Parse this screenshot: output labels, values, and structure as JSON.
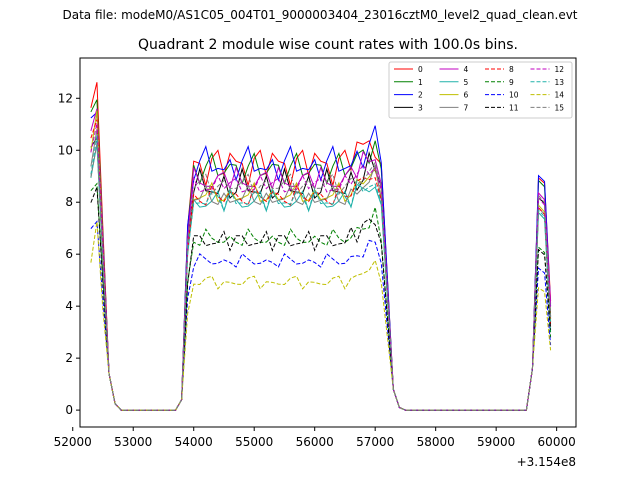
{
  "suptitle": "Data file: modeM0/AS1C05_004T01_9000003404_23016cztM0_level2_quad_clean.evt",
  "chart_data": {
    "type": "line",
    "title": "Quadrant 2 module wise count rates with 100.0s bins.",
    "xlabel": "",
    "ylabel": "",
    "x_offset_label": "+3.154e8",
    "xlim": [
      52120,
      60320
    ],
    "ylim": [
      -0.65,
      13.55
    ],
    "xticks": [
      52000,
      53000,
      54000,
      55000,
      56000,
      57000,
      58000,
      59000,
      60000
    ],
    "xtick_labels": [
      "52000",
      "53000",
      "54000",
      "55000",
      "56000",
      "57000",
      "58000",
      "59000",
      "60000"
    ],
    "yticks": [
      0,
      2,
      4,
      6,
      8,
      10,
      12
    ],
    "ytick_labels": [
      "0",
      "2",
      "4",
      "6",
      "8",
      "10",
      "12"
    ],
    "grid": false,
    "legend": {
      "position": "top-right",
      "columns": 4
    },
    "segments": [
      {
        "start": 52300,
        "n": 4
      },
      {
        "start": 52700,
        "n": 11
      },
      {
        "start": 53800,
        "n": 34
      },
      {
        "start": 57300,
        "n": 23
      },
      {
        "start": 59600,
        "n": 4
      }
    ],
    "series": [
      {
        "name": "0",
        "color": "#ff0000",
        "dashed": false,
        "peak": 12.5,
        "base": 9.4,
        "amp": 0.55,
        "phase": 0.3,
        "tail": 4.2
      },
      {
        "name": "1",
        "color": "#008000",
        "dashed": false,
        "peak": 12.1,
        "base": 9.3,
        "amp": 0.45,
        "phase": 1.1,
        "tail": 3.5
      },
      {
        "name": "2",
        "color": "#0000ff",
        "dashed": false,
        "peak": 11.8,
        "base": 9.5,
        "amp": 0.5,
        "phase": 2.0,
        "tail": 4.0
      },
      {
        "name": "3",
        "color": "#000000",
        "dashed": false,
        "peak": 10.8,
        "base": 8.6,
        "amp": 0.45,
        "phase": 2.7,
        "tail": 3.6
      },
      {
        "name": "4",
        "color": "#c000c0",
        "dashed": false,
        "peak": 11.7,
        "base": 8.8,
        "amp": 0.35,
        "phase": 3.5,
        "tail": 4.1
      },
      {
        "name": "5",
        "color": "#20b2aa",
        "dashed": false,
        "peak": 10.1,
        "base": 8.0,
        "amp": 0.3,
        "phase": 4.2,
        "tail": 3.0
      },
      {
        "name": "6",
        "color": "#bfbf00",
        "dashed": false,
        "peak": 11.2,
        "base": 8.3,
        "amp": 0.3,
        "phase": 5.0,
        "tail": 3.4
      },
      {
        "name": "7",
        "color": "#7f7f7f",
        "dashed": false,
        "peak": 10.5,
        "base": 8.2,
        "amp": 0.3,
        "phase": 5.8,
        "tail": 3.2
      },
      {
        "name": "8",
        "color": "#ff0000",
        "dashed": true,
        "peak": 11.2,
        "base": 8.2,
        "amp": 0.3,
        "phase": 0.7,
        "tail": 3.3
      },
      {
        "name": "9",
        "color": "#008000",
        "dashed": true,
        "peak": 9.0,
        "base": 6.6,
        "amp": 0.25,
        "phase": 1.6,
        "tail": 2.8
      },
      {
        "name": "10",
        "color": "#0000ff",
        "dashed": true,
        "peak": 7.6,
        "base": 5.75,
        "amp": 0.2,
        "phase": 2.4,
        "tail": 2.5
      },
      {
        "name": "11",
        "color": "#000000",
        "dashed": true,
        "peak": 8.8,
        "base": 6.5,
        "amp": 0.25,
        "phase": 3.1,
        "tail": 3.1
      },
      {
        "name": "12",
        "color": "#c000c0",
        "dashed": true,
        "peak": 11.0,
        "base": 8.6,
        "amp": 0.3,
        "phase": 3.9,
        "tail": 3.9
      },
      {
        "name": "13",
        "color": "#20b2aa",
        "dashed": true,
        "peak": 10.3,
        "base": 8.1,
        "amp": 0.3,
        "phase": 4.6,
        "tail": 3.4
      },
      {
        "name": "14",
        "color": "#bfbf00",
        "dashed": true,
        "peak": 6.9,
        "base": 4.95,
        "amp": 0.2,
        "phase": 5.3,
        "tail": 2.3
      },
      {
        "name": "15",
        "color": "#7f7f7f",
        "dashed": true,
        "peak": 10.0,
        "base": 8.7,
        "amp": 0.3,
        "phase": 6.1,
        "tail": 3.6
      }
    ]
  }
}
